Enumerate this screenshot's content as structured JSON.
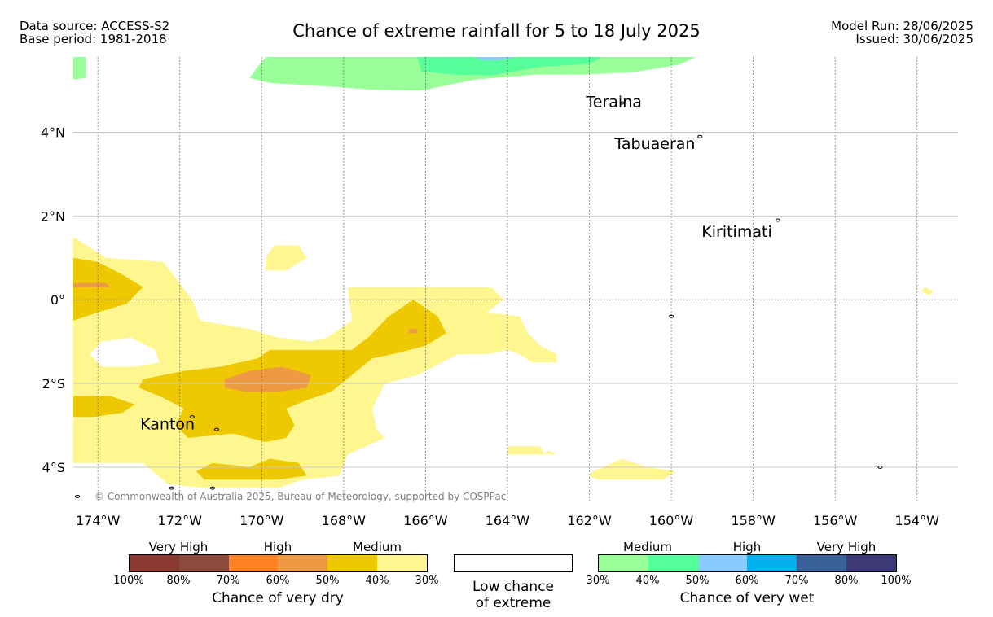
{
  "header": {
    "data_source": "Data source: ACCESS-S2",
    "base_period": "Base period: 1981-2018",
    "title": "Chance of extreme rainfall for 5 to 18 July 2025",
    "model_run": "Model Run: 28/06/2025",
    "issued": "Issued: 30/06/2025"
  },
  "map": {
    "lon_range": [
      -174.6,
      -153.0
    ],
    "lat_range": [
      -4.8,
      5.8
    ],
    "lon_ticks": [
      {
        "value": -174,
        "label": "174°W"
      },
      {
        "value": -172,
        "label": "172°W"
      },
      {
        "value": -170,
        "label": "170°W"
      },
      {
        "value": -168,
        "label": "168°W"
      },
      {
        "value": -166,
        "label": "166°W"
      },
      {
        "value": -164,
        "label": "164°W"
      },
      {
        "value": -162,
        "label": "162°W"
      },
      {
        "value": -160,
        "label": "160°W"
      },
      {
        "value": -158,
        "label": "158°W"
      },
      {
        "value": -156,
        "label": "156°W"
      },
      {
        "value": -154,
        "label": "154°W"
      }
    ],
    "lat_ticks": [
      {
        "value": 4,
        "label": "4°N"
      },
      {
        "value": 2,
        "label": "2°N"
      },
      {
        "value": 0,
        "label": "0°"
      },
      {
        "value": -2,
        "label": "2°S"
      },
      {
        "value": -4,
        "label": "4°S"
      }
    ],
    "places": [
      {
        "name": "Teraina",
        "lon": -161.4,
        "lat": 4.6
      },
      {
        "name": "Tabuaeran",
        "lon": -160.4,
        "lat": 3.6
      },
      {
        "name": "Kiritimati",
        "lon": -158.4,
        "lat": 1.5
      },
      {
        "name": "Kanton",
        "lon": -172.3,
        "lat": -3.1
      }
    ],
    "copyright": "© Commonwealth of Australia 2025, Bureau of Meteorology, supported by COSPPac",
    "regions": [
      {
        "category": "wet_medium_30_40",
        "color": "#99ff99",
        "polygon": [
          [
            -169.9,
            5.8
          ],
          [
            -166.6,
            5.8
          ],
          [
            -163.6,
            5.8
          ],
          [
            -161.3,
            5.8
          ],
          [
            -159.4,
            5.8
          ],
          [
            -159.8,
            5.62
          ],
          [
            -160.9,
            5.44
          ],
          [
            -162.1,
            5.38
          ],
          [
            -163.3,
            5.38
          ],
          [
            -164.8,
            5.26
          ],
          [
            -166.1,
            5.0
          ],
          [
            -167.3,
            5.02
          ],
          [
            -168.4,
            5.1
          ],
          [
            -169.8,
            5.18
          ],
          [
            -170.3,
            5.3
          ],
          [
            -170.1,
            5.56
          ]
        ]
      },
      {
        "category": "wet_medium_30_40",
        "color": "#99ff99",
        "polygon": [
          [
            -174.6,
            5.8
          ],
          [
            -174.3,
            5.8
          ],
          [
            -174.3,
            5.3
          ],
          [
            -174.6,
            5.26
          ]
        ]
      },
      {
        "category": "wet_medium_40_50",
        "color": "#55ff99",
        "polygon": [
          [
            -166.2,
            5.8
          ],
          [
            -163.6,
            5.8
          ],
          [
            -161.7,
            5.8
          ],
          [
            -162.0,
            5.64
          ],
          [
            -163.2,
            5.56
          ],
          [
            -164.4,
            5.36
          ],
          [
            -165.3,
            5.38
          ],
          [
            -166.1,
            5.46
          ]
        ]
      },
      {
        "category": "wet_high_50_60",
        "color": "#88ccff",
        "polygon": [
          [
            -164.8,
            5.8
          ],
          [
            -163.8,
            5.8
          ],
          [
            -164.2,
            5.72
          ],
          [
            -164.6,
            5.72
          ]
        ]
      },
      {
        "category": "dry_medium_30_40",
        "color": "#fff68f",
        "polygon": [
          [
            -174.6,
            1.5
          ],
          [
            -173.8,
            1.0
          ],
          [
            -172.4,
            0.9
          ],
          [
            -171.7,
            0.0
          ],
          [
            -171.5,
            -0.5
          ],
          [
            -170.3,
            -0.7
          ],
          [
            -169.6,
            -0.9
          ],
          [
            -168.8,
            -1.0
          ],
          [
            -168.4,
            -0.9
          ],
          [
            -167.8,
            -0.5
          ],
          [
            -167.9,
            0.3
          ],
          [
            -166.4,
            0.3
          ],
          [
            -164.4,
            0.3
          ],
          [
            -164.1,
            0.0
          ],
          [
            -164.5,
            -0.3
          ],
          [
            -163.7,
            -0.4
          ],
          [
            -163.5,
            -0.8
          ],
          [
            -163.2,
            -1.1
          ],
          [
            -162.8,
            -1.3
          ],
          [
            -162.8,
            -1.5
          ],
          [
            -163.4,
            -1.5
          ],
          [
            -163.7,
            -1.3
          ],
          [
            -164.0,
            -1.2
          ],
          [
            -164.5,
            -1.3
          ],
          [
            -165.2,
            -1.3
          ],
          [
            -165.6,
            -1.5
          ],
          [
            -166.2,
            -1.8
          ],
          [
            -167.0,
            -2.0
          ],
          [
            -167.3,
            -2.6
          ],
          [
            -167.2,
            -3.1
          ],
          [
            -167.0,
            -3.3
          ],
          [
            -167.9,
            -3.7
          ],
          [
            -168.1,
            -4.2
          ],
          [
            -169.0,
            -4.3
          ],
          [
            -169.6,
            -4.5
          ],
          [
            -171.4,
            -4.5
          ],
          [
            -172.3,
            -4.4
          ],
          [
            -172.9,
            -3.9
          ],
          [
            -173.8,
            -3.9
          ],
          [
            -174.6,
            -3.9
          ]
        ]
      },
      {
        "category": "low_chance",
        "color": "#ffffff",
        "polygon": [
          [
            -174.2,
            -1.3
          ],
          [
            -173.9,
            -1.0
          ],
          [
            -173.2,
            -0.9
          ],
          [
            -172.6,
            -1.2
          ],
          [
            -172.5,
            -1.5
          ],
          [
            -173.1,
            -1.6
          ],
          [
            -173.9,
            -1.6
          ]
        ]
      },
      {
        "category": "dry_medium_30_40",
        "color": "#fff68f",
        "polygon": [
          [
            -169.7,
            1.3
          ],
          [
            -169.1,
            1.3
          ],
          [
            -168.9,
            1.0
          ],
          [
            -169.4,
            0.7
          ],
          [
            -169.9,
            0.7
          ],
          [
            -169.9,
            1.0
          ]
        ]
      },
      {
        "category": "dry_medium_30_40",
        "color": "#fff68f",
        "polygon": [
          [
            -164.0,
            -3.5
          ],
          [
            -163.2,
            -3.5
          ],
          [
            -163.1,
            -3.7
          ],
          [
            -164.0,
            -3.7
          ]
        ]
      },
      {
        "category": "dry_medium_30_40",
        "color": "#fff68f",
        "polygon": [
          [
            -163.0,
            -3.6
          ],
          [
            -162.8,
            -3.7
          ],
          [
            -163.1,
            -3.7
          ]
        ]
      },
      {
        "category": "dry_medium_30_40",
        "color": "#fff68f",
        "polygon": [
          [
            -161.9,
            -4.1
          ],
          [
            -161.2,
            -3.8
          ],
          [
            -160.9,
            -3.9
          ],
          [
            -160.6,
            -4.0
          ],
          [
            -159.9,
            -4.1
          ],
          [
            -160.2,
            -4.3
          ],
          [
            -161.8,
            -4.3
          ],
          [
            -162.0,
            -4.2
          ]
        ]
      },
      {
        "category": "dry_medium_30_40",
        "color": "#fff68f",
        "polygon": [
          [
            -153.8,
            0.3
          ],
          [
            -153.6,
            0.2
          ],
          [
            -153.7,
            0.1
          ],
          [
            -153.9,
            0.2
          ]
        ]
      },
      {
        "category": "dry_medium_40_50",
        "color": "#eec800",
        "polygon": [
          [
            -174.6,
            1.0
          ],
          [
            -174.0,
            0.9
          ],
          [
            -173.4,
            0.6
          ],
          [
            -172.9,
            0.3
          ],
          [
            -173.3,
            -0.1
          ],
          [
            -174.0,
            -0.3
          ],
          [
            -174.6,
            -0.5
          ]
        ]
      },
      {
        "category": "dry_medium_40_50",
        "color": "#eec800",
        "polygon": [
          [
            -172.9,
            -1.9
          ],
          [
            -171.9,
            -1.7
          ],
          [
            -171.0,
            -1.6
          ],
          [
            -170.1,
            -1.4
          ],
          [
            -169.8,
            -1.2
          ],
          [
            -168.9,
            -1.2
          ],
          [
            -167.8,
            -1.2
          ],
          [
            -167.4,
            -0.9
          ],
          [
            -166.9,
            -0.4
          ],
          [
            -166.3,
            0.0
          ],
          [
            -165.7,
            -0.4
          ],
          [
            -165.5,
            -0.8
          ],
          [
            -166.0,
            -1.1
          ],
          [
            -166.8,
            -1.3
          ],
          [
            -167.3,
            -1.4
          ],
          [
            -167.8,
            -1.8
          ],
          [
            -168.3,
            -2.2
          ],
          [
            -168.9,
            -2.4
          ],
          [
            -169.4,
            -2.6
          ],
          [
            -169.2,
            -3.0
          ],
          [
            -169.4,
            -3.3
          ],
          [
            -169.9,
            -3.4
          ],
          [
            -170.7,
            -3.2
          ],
          [
            -171.8,
            -3.3
          ],
          [
            -172.1,
            -3.0
          ],
          [
            -171.9,
            -2.6
          ],
          [
            -172.5,
            -2.3
          ],
          [
            -173.0,
            -2.1
          ]
        ]
      },
      {
        "category": "dry_medium_40_50",
        "color": "#eec800",
        "polygon": [
          [
            -174.6,
            -2.3
          ],
          [
            -173.7,
            -2.3
          ],
          [
            -173.1,
            -2.5
          ],
          [
            -173.4,
            -2.7
          ],
          [
            -174.1,
            -2.8
          ],
          [
            -174.6,
            -2.8
          ]
        ]
      },
      {
        "category": "dry_medium_40_50",
        "color": "#eec800",
        "polygon": [
          [
            -171.6,
            -4.1
          ],
          [
            -171.2,
            -3.9
          ],
          [
            -170.3,
            -4.0
          ],
          [
            -169.8,
            -3.8
          ],
          [
            -169.1,
            -3.9
          ],
          [
            -168.9,
            -4.2
          ],
          [
            -169.6,
            -4.3
          ],
          [
            -170.6,
            -4.3
          ],
          [
            -171.4,
            -4.3
          ]
        ]
      },
      {
        "category": "dry_high_50_60",
        "color": "#ee9944",
        "polygon": [
          [
            -174.6,
            0.4
          ],
          [
            -173.8,
            0.4
          ],
          [
            -173.7,
            0.3
          ],
          [
            -174.6,
            0.3
          ]
        ]
      },
      {
        "category": "dry_high_50_60",
        "color": "#ee9944",
        "polygon": [
          [
            -170.9,
            -1.9
          ],
          [
            -170.3,
            -1.7
          ],
          [
            -169.5,
            -1.6
          ],
          [
            -168.8,
            -1.8
          ],
          [
            -168.9,
            -2.1
          ],
          [
            -169.6,
            -2.2
          ],
          [
            -170.4,
            -2.2
          ],
          [
            -170.9,
            -2.1
          ]
        ]
      },
      {
        "category": "dry_high_50_60",
        "color": "#ee9944",
        "polygon": [
          [
            -166.4,
            -0.7
          ],
          [
            -166.2,
            -0.7
          ],
          [
            -166.2,
            -0.8
          ],
          [
            -166.4,
            -0.8
          ]
        ]
      }
    ],
    "islands": [
      {
        "lon": -161.2,
        "lat": 4.7
      },
      {
        "lon": -159.3,
        "lat": 3.9
      },
      {
        "lon": -157.4,
        "lat": 1.9
      },
      {
        "lon": -171.7,
        "lat": -2.8
      },
      {
        "lon": -171.1,
        "lat": -3.1
      },
      {
        "lon": -160.0,
        "lat": -0.4
      },
      {
        "lon": -154.9,
        "lat": -4.0
      },
      {
        "lon": -172.2,
        "lat": -4.5
      },
      {
        "lon": -171.2,
        "lat": -4.5
      },
      {
        "lon": -174.5,
        "lat": -4.7
      }
    ]
  },
  "legend": {
    "dry": {
      "colors": [
        "#8b3a32",
        "#8b4a3a",
        "#ff8020",
        "#ee9944",
        "#eec800",
        "#fff68f"
      ],
      "group_labels": [
        "Very High",
        "High",
        "Medium"
      ],
      "ticks": [
        "100%",
        "80%",
        "70%",
        "60%",
        "50%",
        "40%",
        "30%"
      ],
      "title": "Chance of very dry"
    },
    "low": {
      "color": "#ffffff",
      "line1": "Low chance",
      "line2": "of extreme"
    },
    "wet": {
      "colors": [
        "#99ff99",
        "#55ff99",
        "#88ccff",
        "#00b0ee",
        "#3a6099",
        "#3d3a77"
      ],
      "group_labels": [
        "Medium",
        "High",
        "Very High"
      ],
      "ticks": [
        "30%",
        "40%",
        "50%",
        "60%",
        "70%",
        "80%",
        "100%"
      ],
      "title": "Chance of very wet"
    }
  }
}
